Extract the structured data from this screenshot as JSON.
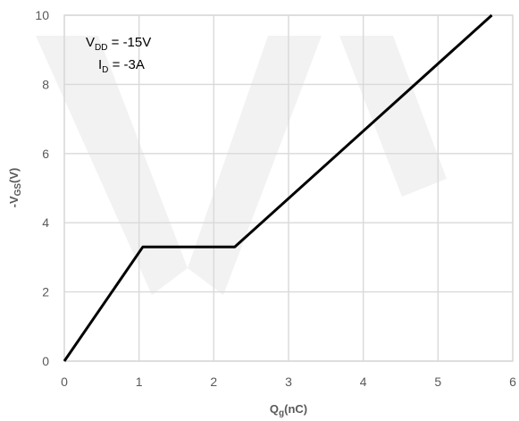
{
  "chart_data": {
    "type": "line",
    "title": "",
    "xlabel": {
      "main": "Q",
      "sub": "g",
      "unit": "(nC)"
    },
    "ylabel": {
      "prefix": "-V",
      "sub": "GS",
      "unit": "(V)"
    },
    "xlim": [
      0,
      6
    ],
    "ylim": [
      0,
      10
    ],
    "x_ticks": [
      "0",
      "1",
      "2",
      "3",
      "4",
      "5",
      "6"
    ],
    "y_ticks": [
      "0",
      "2",
      "4",
      "6",
      "8",
      "10"
    ],
    "grid": true,
    "series": [
      {
        "points": [
          {
            "x": 0,
            "y": 0
          },
          {
            "x": 1.05,
            "y": 3.3
          },
          {
            "x": 2.28,
            "y": 3.3
          },
          {
            "x": 5.72,
            "y": 10
          }
        ],
        "color": "#000000"
      }
    ],
    "annotations": [
      {
        "main": "V",
        "sub": "DD",
        "rest": " = -15V"
      },
      {
        "main": "I",
        "sub": "D",
        "rest": " = -3A"
      }
    ]
  }
}
